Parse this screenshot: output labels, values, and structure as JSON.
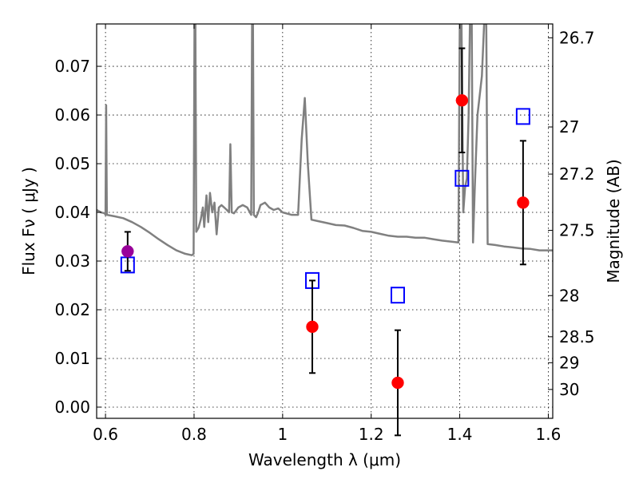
{
  "chart_data": {
    "type": "scatter",
    "title": "",
    "xlabel": "Wavelength  λ (μm)",
    "ylabel": "Flux  Fν  ( μJy )",
    "ylabel_right": "Magnitude (AB)",
    "xlim": [
      0.58,
      1.61
    ],
    "ylim": [
      -0.0023,
      0.0787
    ],
    "grid": true,
    "x_ticks": [
      0.6,
      0.8,
      1.0,
      1.2,
      1.4,
      1.6
    ],
    "x_tick_labels": [
      "0.6",
      "0.8",
      "1",
      "1.2",
      "1.4",
      "1.6"
    ],
    "y_ticks": [
      0.0,
      0.01,
      0.02,
      0.03,
      0.04,
      0.05,
      0.06,
      0.07
    ],
    "y_tick_labels": [
      "0.00",
      "0.01",
      "0.02",
      "0.03",
      "0.04",
      "0.05",
      "0.06",
      "0.07"
    ],
    "right_ticks": [
      {
        "mag": 26.7,
        "label": "26.7"
      },
      {
        "mag": 27.0,
        "label": "27"
      },
      {
        "mag": 27.2,
        "label": "27.2"
      },
      {
        "mag": 27.5,
        "label": "27.5"
      },
      {
        "mag": 28.0,
        "label": "28"
      },
      {
        "mag": 28.5,
        "label": "28.5"
      },
      {
        "mag": 29.0,
        "label": "29"
      },
      {
        "mag": 30.0,
        "label": "30"
      }
    ],
    "colors": {
      "model": "#808080",
      "observed": "#ff0000",
      "observed_magenta": "#990099",
      "model_bands": "#0000ff",
      "errorbar": "#000000"
    },
    "series": [
      {
        "kind": "line",
        "points": [
          [
            0.58,
            0.0405
          ],
          [
            0.59,
            0.04
          ],
          [
            0.598,
            0.0398
          ],
          [
            0.6,
            0.0395
          ],
          [
            0.6015,
            0.062
          ],
          [
            0.603,
            0.0395
          ],
          [
            0.62,
            0.0392
          ],
          [
            0.64,
            0.0388
          ],
          [
            0.66,
            0.038
          ],
          [
            0.68,
            0.037
          ],
          [
            0.7,
            0.0358
          ],
          [
            0.72,
            0.0345
          ],
          [
            0.74,
            0.0333
          ],
          [
            0.76,
            0.0322
          ],
          [
            0.78,
            0.0315
          ],
          [
            0.795,
            0.0312
          ],
          [
            0.799,
            0.0315
          ],
          [
            0.801,
            0.0787
          ],
          [
            0.803,
            0.0787
          ],
          [
            0.805,
            0.036
          ],
          [
            0.81,
            0.0368
          ],
          [
            0.815,
            0.0385
          ],
          [
            0.82,
            0.041
          ],
          [
            0.823,
            0.037
          ],
          [
            0.828,
            0.0435
          ],
          [
            0.832,
            0.038
          ],
          [
            0.836,
            0.044
          ],
          [
            0.841,
            0.04
          ],
          [
            0.846,
            0.042
          ],
          [
            0.851,
            0.0355
          ],
          [
            0.856,
            0.041
          ],
          [
            0.862,
            0.0415
          ],
          [
            0.868,
            0.041
          ],
          [
            0.874,
            0.0405
          ],
          [
            0.879,
            0.04
          ],
          [
            0.882,
            0.054
          ],
          [
            0.885,
            0.04
          ],
          [
            0.89,
            0.0398
          ],
          [
            0.9,
            0.041
          ],
          [
            0.91,
            0.0415
          ],
          [
            0.92,
            0.041
          ],
          [
            0.929,
            0.0395
          ],
          [
            0.931,
            0.0787
          ],
          [
            0.933,
            0.0787
          ],
          [
            0.935,
            0.0395
          ],
          [
            0.94,
            0.039
          ],
          [
            0.945,
            0.04
          ],
          [
            0.95,
            0.0415
          ],
          [
            0.96,
            0.042
          ],
          [
            0.97,
            0.041
          ],
          [
            0.98,
            0.0405
          ],
          [
            0.99,
            0.0408
          ],
          [
            1.0,
            0.04
          ],
          [
            1.02,
            0.0395
          ],
          [
            1.035,
            0.0395
          ],
          [
            1.043,
            0.055
          ],
          [
            1.05,
            0.0635
          ],
          [
            1.057,
            0.05
          ],
          [
            1.065,
            0.0385
          ],
          [
            1.08,
            0.0382
          ],
          [
            1.1,
            0.0378
          ],
          [
            1.12,
            0.0374
          ],
          [
            1.14,
            0.0373
          ],
          [
            1.16,
            0.0368
          ],
          [
            1.18,
            0.0362
          ],
          [
            1.2,
            0.036
          ],
          [
            1.22,
            0.0356
          ],
          [
            1.24,
            0.0352
          ],
          [
            1.26,
            0.035
          ],
          [
            1.28,
            0.035
          ],
          [
            1.3,
            0.0348
          ],
          [
            1.32,
            0.0348
          ],
          [
            1.34,
            0.0345
          ],
          [
            1.36,
            0.0342
          ],
          [
            1.38,
            0.034
          ],
          [
            1.397,
            0.0338
          ],
          [
            1.4,
            0.0787
          ],
          [
            1.404,
            0.0787
          ],
          [
            1.408,
            0.04
          ],
          [
            1.412,
            0.045
          ],
          [
            1.416,
            0.047
          ],
          [
            1.42,
            0.06
          ],
          [
            1.423,
            0.0787
          ],
          [
            1.427,
            0.0787
          ],
          [
            1.43,
            0.0338
          ],
          [
            1.434,
            0.045
          ],
          [
            1.44,
            0.06
          ],
          [
            1.45,
            0.068
          ],
          [
            1.455,
            0.0787
          ],
          [
            1.46,
            0.0787
          ],
          [
            1.463,
            0.0335
          ],
          [
            1.48,
            0.0333
          ],
          [
            1.5,
            0.033
          ],
          [
            1.52,
            0.0328
          ],
          [
            1.54,
            0.0326
          ],
          [
            1.56,
            0.0325
          ],
          [
            1.58,
            0.0322
          ],
          [
            1.6,
            0.0322
          ],
          [
            1.61,
            0.0322
          ]
        ]
      },
      {
        "kind": "points",
        "marker": "circle",
        "points": [
          {
            "x": 0.65,
            "y": 0.032,
            "err": 0.004,
            "color": "magenta"
          },
          {
            "x": 1.067,
            "y": 0.0165,
            "err": 0.0095,
            "color": "red"
          },
          {
            "x": 1.26,
            "y": 0.005,
            "err": 0.0108,
            "color": "red"
          },
          {
            "x": 1.405,
            "y": 0.063,
            "err": 0.0107,
            "color": "red"
          },
          {
            "x": 1.543,
            "y": 0.042,
            "err": 0.0127,
            "color": "red"
          }
        ]
      },
      {
        "kind": "points",
        "marker": "square",
        "points": [
          {
            "x": 0.65,
            "y": 0.0292
          },
          {
            "x": 1.067,
            "y": 0.026
          },
          {
            "x": 1.26,
            "y": 0.023
          },
          {
            "x": 1.405,
            "y": 0.047
          },
          {
            "x": 1.543,
            "y": 0.0597
          }
        ]
      }
    ]
  }
}
